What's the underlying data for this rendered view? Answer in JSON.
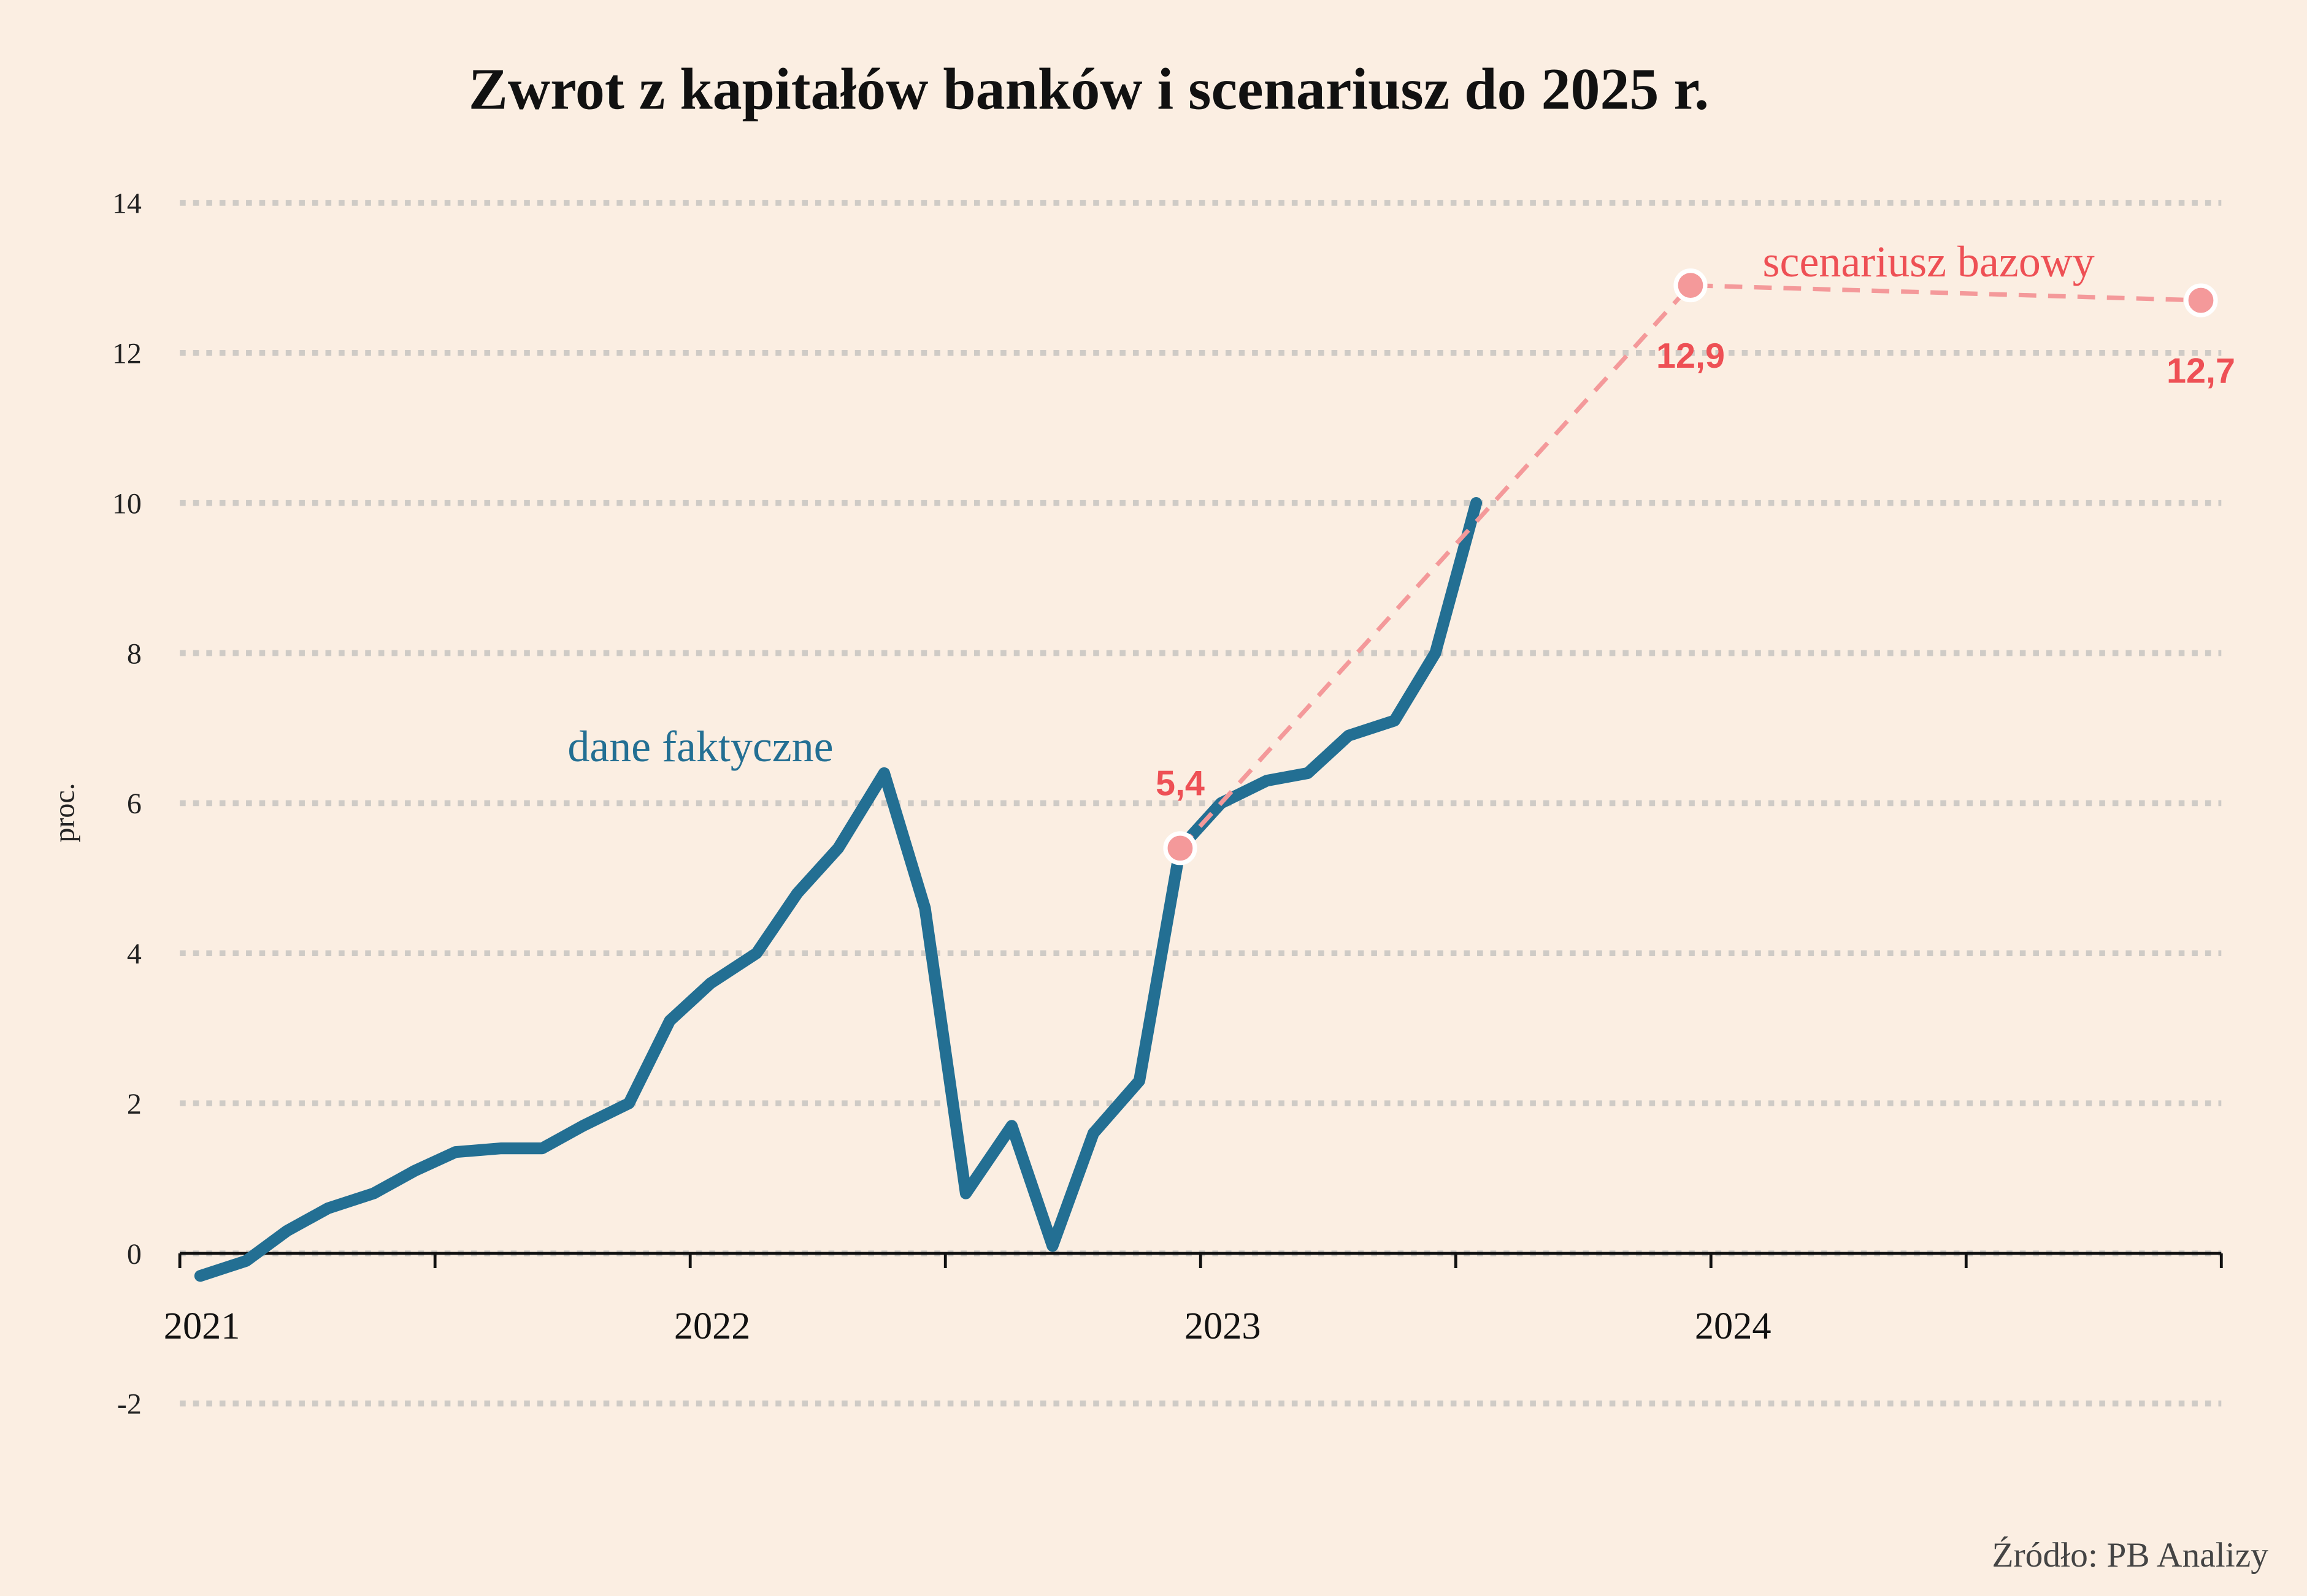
{
  "chart_data": {
    "type": "line",
    "title": "Zwrot z kapitałów banków i scenariusz do 2025 r.",
    "y_label": "proc.",
    "source": "Źródło: PB Analizy",
    "xlim": [
      2021,
      2025
    ],
    "xticks": [
      2021,
      2022,
      2023,
      2024
    ],
    "ylim": [
      -2,
      14
    ],
    "yticks": [
      -2,
      0,
      2,
      4,
      6,
      8,
      10,
      12,
      14
    ],
    "grid": true,
    "series": [
      {
        "name": "dane faktyczne",
        "color": "#236f93",
        "x": [
          2021.04,
          2021.13,
          2021.21,
          2021.29,
          2021.38,
          2021.46,
          2021.54,
          2021.63,
          2021.71,
          2021.79,
          2021.88,
          2021.96,
          2022.04,
          2022.13,
          2022.21,
          2022.29,
          2022.38,
          2022.46,
          2022.54,
          2022.63,
          2022.71,
          2022.79,
          2022.88,
          2022.96,
          2023.04,
          2023.13,
          2023.21,
          2023.29,
          2023.38,
          2023.46,
          2023.54
        ],
        "values": [
          -0.3,
          -0.1,
          0.3,
          0.6,
          0.8,
          1.1,
          1.35,
          1.4,
          1.4,
          1.7,
          2.0,
          3.1,
          3.6,
          4.0,
          4.8,
          5.4,
          6.4,
          4.6,
          0.8,
          1.7,
          0.1,
          1.6,
          2.3,
          5.4,
          6.0,
          6.3,
          6.4,
          6.9,
          7.1,
          8.0,
          10.0
        ]
      },
      {
        "name": "scenariusz bazowy",
        "color": "#f4999a",
        "label_color": "#ee5055",
        "x": [
          2022.96,
          2023.96,
          2024.96
        ],
        "values": [
          5.4,
          12.9,
          12.7
        ],
        "value_labels": [
          "5,4",
          "12,9",
          "12,7"
        ]
      }
    ]
  }
}
